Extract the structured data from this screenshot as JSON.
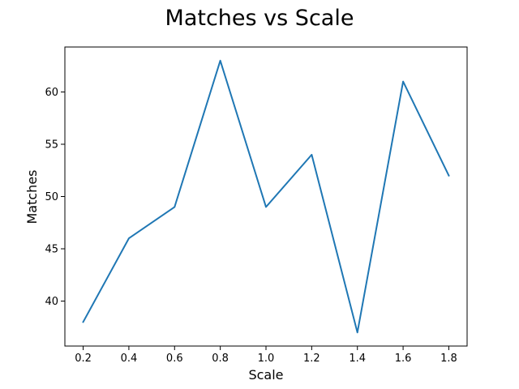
{
  "chart_data": {
    "type": "line",
    "title": "Matches vs Scale",
    "xlabel": "Scale",
    "ylabel": "Matches",
    "x": [
      0.2,
      0.4,
      0.6,
      0.8,
      1.0,
      1.2,
      1.4,
      1.6,
      1.8
    ],
    "series": [
      {
        "values": [
          38,
          46,
          49,
          63,
          49,
          54,
          37,
          61,
          52
        ],
        "color": "#1f77b4"
      }
    ],
    "xlim": [
      0.12,
      1.88
    ],
    "ylim": [
      35.7,
      64.3
    ],
    "xticks": [
      0.2,
      0.4,
      0.6,
      0.8,
      1.0,
      1.2,
      1.4,
      1.6,
      1.8
    ],
    "xtick_labels": [
      "0.2",
      "0.4",
      "0.6",
      "0.8",
      "1.0",
      "1.2",
      "1.4",
      "1.6",
      "1.8"
    ],
    "yticks": [
      40,
      45,
      50,
      55,
      60
    ],
    "ytick_labels": [
      "40",
      "45",
      "50",
      "55",
      "60"
    ],
    "grid": false,
    "legend": "none"
  }
}
